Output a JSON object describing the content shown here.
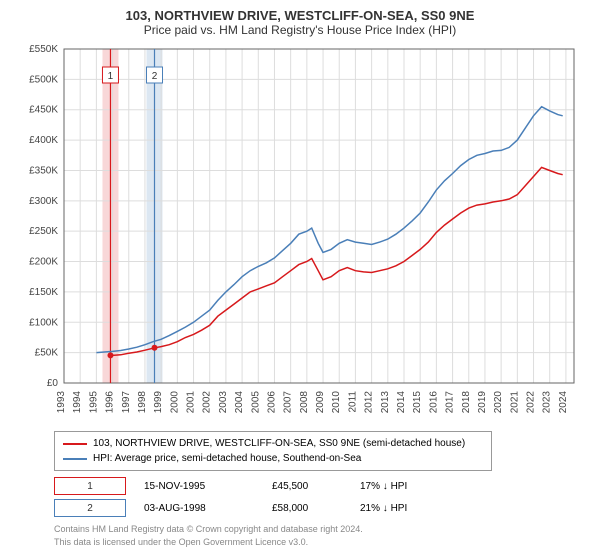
{
  "title": "103, NORTHVIEW DRIVE, WESTCLIFF-ON-SEA, SS0 9NE",
  "subtitle": "Price paid vs. HM Land Registry's House Price Index (HPI)",
  "chart": {
    "type": "line",
    "background_color": "#ffffff",
    "grid_color": "#dddddd",
    "axis_color": "#666666",
    "tick_fontsize": 10,
    "tick_color": "#444444",
    "x_years": [
      1993,
      1994,
      1995,
      1996,
      1997,
      1998,
      1999,
      2000,
      2001,
      2002,
      2003,
      2004,
      2005,
      2006,
      2007,
      2008,
      2009,
      2010,
      2011,
      2012,
      2013,
      2014,
      2015,
      2016,
      2017,
      2018,
      2019,
      2020,
      2021,
      2022,
      2023,
      2024
    ],
    "y_ticks": [
      0,
      50000,
      100000,
      150000,
      200000,
      250000,
      300000,
      350000,
      400000,
      450000,
      500000,
      550000
    ],
    "y_tick_labels": [
      "£0",
      "£50K",
      "£100K",
      "£150K",
      "£200K",
      "£250K",
      "£300K",
      "£350K",
      "£400K",
      "£450K",
      "£500K",
      "£550K"
    ],
    "ylim": [
      0,
      550000
    ],
    "xlim": [
      1993,
      2024.5
    ],
    "series": [
      {
        "name": "103, NORTHVIEW DRIVE, WESTCLIFF-ON-SEA, SS0 9NE (semi-detached house)",
        "color": "#d7191c",
        "line_width": 1.5,
        "data": [
          [
            1995.87,
            45500
          ],
          [
            1996.1,
            45800
          ],
          [
            1996.5,
            46500
          ],
          [
            1997.0,
            49000
          ],
          [
            1997.5,
            51000
          ],
          [
            1998.0,
            54000
          ],
          [
            1998.6,
            58000
          ],
          [
            1999.0,
            60000
          ],
          [
            1999.5,
            63000
          ],
          [
            2000.0,
            68000
          ],
          [
            2000.5,
            75000
          ],
          [
            2001.0,
            80000
          ],
          [
            2001.5,
            87000
          ],
          [
            2002.0,
            95000
          ],
          [
            2002.5,
            110000
          ],
          [
            2003.0,
            120000
          ],
          [
            2003.5,
            130000
          ],
          [
            2004.0,
            140000
          ],
          [
            2004.5,
            150000
          ],
          [
            2005.0,
            155000
          ],
          [
            2005.5,
            160000
          ],
          [
            2006.0,
            165000
          ],
          [
            2006.5,
            175000
          ],
          [
            2007.0,
            185000
          ],
          [
            2007.5,
            195000
          ],
          [
            2008.0,
            200000
          ],
          [
            2008.3,
            205000
          ],
          [
            2008.7,
            185000
          ],
          [
            2009.0,
            170000
          ],
          [
            2009.5,
            175000
          ],
          [
            2010.0,
            185000
          ],
          [
            2010.5,
            190000
          ],
          [
            2011.0,
            185000
          ],
          [
            2011.5,
            183000
          ],
          [
            2012.0,
            182000
          ],
          [
            2012.5,
            185000
          ],
          [
            2013.0,
            188000
          ],
          [
            2013.5,
            193000
          ],
          [
            2014.0,
            200000
          ],
          [
            2014.5,
            210000
          ],
          [
            2015.0,
            220000
          ],
          [
            2015.5,
            232000
          ],
          [
            2016.0,
            248000
          ],
          [
            2016.5,
            260000
          ],
          [
            2017.0,
            270000
          ],
          [
            2017.5,
            280000
          ],
          [
            2018.0,
            288000
          ],
          [
            2018.5,
            293000
          ],
          [
            2019.0,
            295000
          ],
          [
            2019.5,
            298000
          ],
          [
            2020.0,
            300000
          ],
          [
            2020.5,
            303000
          ],
          [
            2021.0,
            310000
          ],
          [
            2021.5,
            325000
          ],
          [
            2022.0,
            340000
          ],
          [
            2022.5,
            355000
          ],
          [
            2023.0,
            350000
          ],
          [
            2023.5,
            345000
          ],
          [
            2023.8,
            343000
          ]
        ]
      },
      {
        "name": "HPI: Average price, semi-detached house, Southend-on-Sea",
        "color": "#4a7fb8",
        "line_width": 1.5,
        "data": [
          [
            1995.0,
            50000
          ],
          [
            1995.5,
            51000
          ],
          [
            1996.0,
            52000
          ],
          [
            1996.5,
            53500
          ],
          [
            1997.0,
            56000
          ],
          [
            1997.5,
            59000
          ],
          [
            1998.0,
            63000
          ],
          [
            1998.5,
            68000
          ],
          [
            1999.0,
            72000
          ],
          [
            1999.5,
            78000
          ],
          [
            2000.0,
            85000
          ],
          [
            2000.5,
            92000
          ],
          [
            2001.0,
            100000
          ],
          [
            2001.5,
            110000
          ],
          [
            2002.0,
            120000
          ],
          [
            2002.5,
            136000
          ],
          [
            2003.0,
            150000
          ],
          [
            2003.5,
            162000
          ],
          [
            2004.0,
            175000
          ],
          [
            2004.5,
            185000
          ],
          [
            2005.0,
            192000
          ],
          [
            2005.5,
            198000
          ],
          [
            2006.0,
            206000
          ],
          [
            2006.5,
            218000
          ],
          [
            2007.0,
            230000
          ],
          [
            2007.5,
            245000
          ],
          [
            2008.0,
            250000
          ],
          [
            2008.3,
            255000
          ],
          [
            2008.7,
            230000
          ],
          [
            2009.0,
            215000
          ],
          [
            2009.5,
            220000
          ],
          [
            2010.0,
            230000
          ],
          [
            2010.5,
            236000
          ],
          [
            2011.0,
            232000
          ],
          [
            2011.5,
            230000
          ],
          [
            2012.0,
            228000
          ],
          [
            2012.5,
            232000
          ],
          [
            2013.0,
            237000
          ],
          [
            2013.5,
            245000
          ],
          [
            2014.0,
            255000
          ],
          [
            2014.5,
            267000
          ],
          [
            2015.0,
            280000
          ],
          [
            2015.5,
            298000
          ],
          [
            2016.0,
            318000
          ],
          [
            2016.5,
            333000
          ],
          [
            2017.0,
            345000
          ],
          [
            2017.5,
            358000
          ],
          [
            2018.0,
            368000
          ],
          [
            2018.5,
            375000
          ],
          [
            2019.0,
            378000
          ],
          [
            2019.5,
            382000
          ],
          [
            2020.0,
            383000
          ],
          [
            2020.5,
            388000
          ],
          [
            2021.0,
            400000
          ],
          [
            2021.5,
            420000
          ],
          [
            2022.0,
            440000
          ],
          [
            2022.5,
            455000
          ],
          [
            2023.0,
            448000
          ],
          [
            2023.5,
            442000
          ],
          [
            2023.8,
            440000
          ]
        ]
      }
    ],
    "sale_markers": [
      {
        "label": "1",
        "x": 1995.87,
        "y": 45500,
        "line_color": "#d7191c",
        "band_color": "#f8d7d8"
      },
      {
        "label": "2",
        "x": 1998.59,
        "y": 58000,
        "line_color": "#4a7fb8",
        "band_color": "#dce7f2"
      }
    ],
    "marker_dot_color": "#d7191c",
    "marker_dot_radius": 3
  },
  "legend": {
    "items": [
      {
        "color": "#d7191c",
        "label": "103, NORTHVIEW DRIVE, WESTCLIFF-ON-SEA, SS0 9NE (semi-detached house)"
      },
      {
        "color": "#4a7fb8",
        "label": "HPI: Average price, semi-detached house, Southend-on-Sea"
      }
    ]
  },
  "sales": [
    {
      "badge": "1",
      "badge_color": "#d7191c",
      "date": "15-NOV-1995",
      "price": "£45,500",
      "pct": "17% ↓ HPI"
    },
    {
      "badge": "2",
      "badge_color": "#4a7fb8",
      "date": "03-AUG-1998",
      "price": "£58,000",
      "pct": "21% ↓ HPI"
    }
  ],
  "footer": {
    "line1": "Contains HM Land Registry data © Crown copyright and database right 2024.",
    "line2": "This data is licensed under the Open Government Licence v3.0."
  }
}
